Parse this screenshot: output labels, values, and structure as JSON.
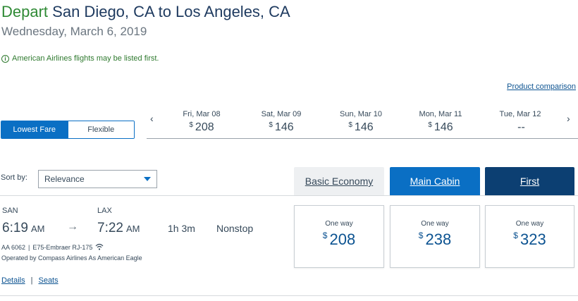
{
  "header": {
    "depart_word": "Depart",
    "route": "San Diego, CA to Los Angeles, CA",
    "date": "Wednesday, March 6, 2019"
  },
  "notice": {
    "icon": "info-icon",
    "text": "American Airlines flights may be listed first."
  },
  "product_comparison": "Product comparison",
  "fare_toggle": {
    "lowest": "Lowest Fare",
    "flexible": "Flexible"
  },
  "date_strip": {
    "prev_icon": "‹",
    "next_icon": "›",
    "dates": [
      {
        "label": "Fri, Mar 08",
        "currency": "$",
        "price": "208"
      },
      {
        "label": "Sat, Mar 09",
        "currency": "$",
        "price": "146"
      },
      {
        "label": "Sun, Mar 10",
        "currency": "$",
        "price": "146"
      },
      {
        "label": "Mon, Mar 11",
        "currency": "$",
        "price": "146"
      },
      {
        "label": "Tue, Mar 12",
        "currency": "",
        "price": "--"
      }
    ]
  },
  "sort": {
    "label": "Sort by:",
    "value": "Relevance"
  },
  "cabins": {
    "basic": "Basic Economy",
    "main": "Main Cabin",
    "first": "First"
  },
  "flight": {
    "origin": "SAN",
    "dest": "LAX",
    "depart_time": "6:19",
    "depart_ampm": "AM",
    "arrive_time": "7:22",
    "arrive_ampm": "AM",
    "arrow": "→",
    "duration": "1h 3m",
    "stops": "Nonstop",
    "flight_number": "AA 6062",
    "separator": "|",
    "aircraft": "E75-Embraer RJ-175",
    "wifi_icon": "wifi-icon",
    "operated_by": "Operated by Compass Airlines As American Eagle",
    "details": "Details",
    "links_sep": "|",
    "seats": "Seats"
  },
  "prices": [
    {
      "label": "One way",
      "currency": "$",
      "amount": "208"
    },
    {
      "label": "One way",
      "currency": "$",
      "amount": "238"
    },
    {
      "label": "One way",
      "currency": "$",
      "amount": "323"
    }
  ],
  "colors": {
    "brand_blue": "#0a6fc4",
    "first_navy": "#0c3f72",
    "link_blue": "#0c5391",
    "notice_green": "#2f7a2f"
  }
}
